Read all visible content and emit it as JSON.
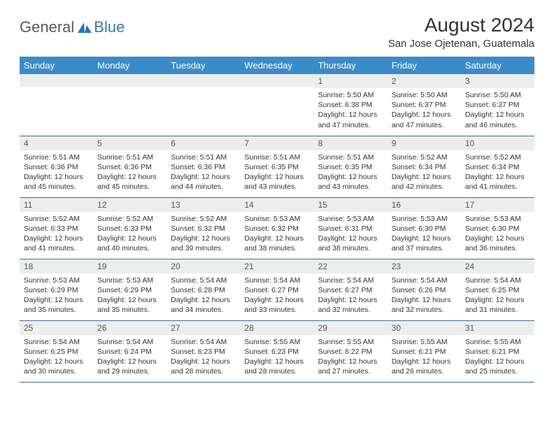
{
  "brand": {
    "general": "General",
    "blue": "Blue",
    "icon_color": "#2b74b8"
  },
  "title": "August 2024",
  "subtitle": "San Jose Ojetenan, Guatemala",
  "colors": {
    "header_bg": "#3b8bc9",
    "header_text": "#ffffff",
    "daynum_bg": "#eceded",
    "row_border": "#3b6fa3",
    "text": "#333333"
  },
  "weekdays": [
    "Sunday",
    "Monday",
    "Tuesday",
    "Wednesday",
    "Thursday",
    "Friday",
    "Saturday"
  ],
  "weeks": [
    [
      {
        "num": "",
        "lines": []
      },
      {
        "num": "",
        "lines": []
      },
      {
        "num": "",
        "lines": []
      },
      {
        "num": "",
        "lines": []
      },
      {
        "num": "1",
        "lines": [
          "Sunrise: 5:50 AM",
          "Sunset: 6:38 PM",
          "Daylight: 12 hours and 47 minutes."
        ]
      },
      {
        "num": "2",
        "lines": [
          "Sunrise: 5:50 AM",
          "Sunset: 6:37 PM",
          "Daylight: 12 hours and 47 minutes."
        ]
      },
      {
        "num": "3",
        "lines": [
          "Sunrise: 5:50 AM",
          "Sunset: 6:37 PM",
          "Daylight: 12 hours and 46 minutes."
        ]
      }
    ],
    [
      {
        "num": "4",
        "lines": [
          "Sunrise: 5:51 AM",
          "Sunset: 6:36 PM",
          "Daylight: 12 hours and 45 minutes."
        ]
      },
      {
        "num": "5",
        "lines": [
          "Sunrise: 5:51 AM",
          "Sunset: 6:36 PM",
          "Daylight: 12 hours and 45 minutes."
        ]
      },
      {
        "num": "6",
        "lines": [
          "Sunrise: 5:51 AM",
          "Sunset: 6:36 PM",
          "Daylight: 12 hours and 44 minutes."
        ]
      },
      {
        "num": "7",
        "lines": [
          "Sunrise: 5:51 AM",
          "Sunset: 6:35 PM",
          "Daylight: 12 hours and 43 minutes."
        ]
      },
      {
        "num": "8",
        "lines": [
          "Sunrise: 5:51 AM",
          "Sunset: 6:35 PM",
          "Daylight: 12 hours and 43 minutes."
        ]
      },
      {
        "num": "9",
        "lines": [
          "Sunrise: 5:52 AM",
          "Sunset: 6:34 PM",
          "Daylight: 12 hours and 42 minutes."
        ]
      },
      {
        "num": "10",
        "lines": [
          "Sunrise: 5:52 AM",
          "Sunset: 6:34 PM",
          "Daylight: 12 hours and 41 minutes."
        ]
      }
    ],
    [
      {
        "num": "11",
        "lines": [
          "Sunrise: 5:52 AM",
          "Sunset: 6:33 PM",
          "Daylight: 12 hours and 41 minutes."
        ]
      },
      {
        "num": "12",
        "lines": [
          "Sunrise: 5:52 AM",
          "Sunset: 6:33 PM",
          "Daylight: 12 hours and 40 minutes."
        ]
      },
      {
        "num": "13",
        "lines": [
          "Sunrise: 5:52 AM",
          "Sunset: 6:32 PM",
          "Daylight: 12 hours and 39 minutes."
        ]
      },
      {
        "num": "14",
        "lines": [
          "Sunrise: 5:53 AM",
          "Sunset: 6:32 PM",
          "Daylight: 12 hours and 38 minutes."
        ]
      },
      {
        "num": "15",
        "lines": [
          "Sunrise: 5:53 AM",
          "Sunset: 6:31 PM",
          "Daylight: 12 hours and 38 minutes."
        ]
      },
      {
        "num": "16",
        "lines": [
          "Sunrise: 5:53 AM",
          "Sunset: 6:30 PM",
          "Daylight: 12 hours and 37 minutes."
        ]
      },
      {
        "num": "17",
        "lines": [
          "Sunrise: 5:53 AM",
          "Sunset: 6:30 PM",
          "Daylight: 12 hours and 36 minutes."
        ]
      }
    ],
    [
      {
        "num": "18",
        "lines": [
          "Sunrise: 5:53 AM",
          "Sunset: 6:29 PM",
          "Daylight: 12 hours and 35 minutes."
        ]
      },
      {
        "num": "19",
        "lines": [
          "Sunrise: 5:53 AM",
          "Sunset: 6:29 PM",
          "Daylight: 12 hours and 35 minutes."
        ]
      },
      {
        "num": "20",
        "lines": [
          "Sunrise: 5:54 AM",
          "Sunset: 6:28 PM",
          "Daylight: 12 hours and 34 minutes."
        ]
      },
      {
        "num": "21",
        "lines": [
          "Sunrise: 5:54 AM",
          "Sunset: 6:27 PM",
          "Daylight: 12 hours and 33 minutes."
        ]
      },
      {
        "num": "22",
        "lines": [
          "Sunrise: 5:54 AM",
          "Sunset: 6:27 PM",
          "Daylight: 12 hours and 32 minutes."
        ]
      },
      {
        "num": "23",
        "lines": [
          "Sunrise: 5:54 AM",
          "Sunset: 6:26 PM",
          "Daylight: 12 hours and 32 minutes."
        ]
      },
      {
        "num": "24",
        "lines": [
          "Sunrise: 5:54 AM",
          "Sunset: 6:25 PM",
          "Daylight: 12 hours and 31 minutes."
        ]
      }
    ],
    [
      {
        "num": "25",
        "lines": [
          "Sunrise: 5:54 AM",
          "Sunset: 6:25 PM",
          "Daylight: 12 hours and 30 minutes."
        ]
      },
      {
        "num": "26",
        "lines": [
          "Sunrise: 5:54 AM",
          "Sunset: 6:24 PM",
          "Daylight: 12 hours and 29 minutes."
        ]
      },
      {
        "num": "27",
        "lines": [
          "Sunrise: 5:54 AM",
          "Sunset: 6:23 PM",
          "Daylight: 12 hours and 28 minutes."
        ]
      },
      {
        "num": "28",
        "lines": [
          "Sunrise: 5:55 AM",
          "Sunset: 6:23 PM",
          "Daylight: 12 hours and 28 minutes."
        ]
      },
      {
        "num": "29",
        "lines": [
          "Sunrise: 5:55 AM",
          "Sunset: 6:22 PM",
          "Daylight: 12 hours and 27 minutes."
        ]
      },
      {
        "num": "30",
        "lines": [
          "Sunrise: 5:55 AM",
          "Sunset: 6:21 PM",
          "Daylight: 12 hours and 26 minutes."
        ]
      },
      {
        "num": "31",
        "lines": [
          "Sunrise: 5:55 AM",
          "Sunset: 6:21 PM",
          "Daylight: 12 hours and 25 minutes."
        ]
      }
    ]
  ]
}
